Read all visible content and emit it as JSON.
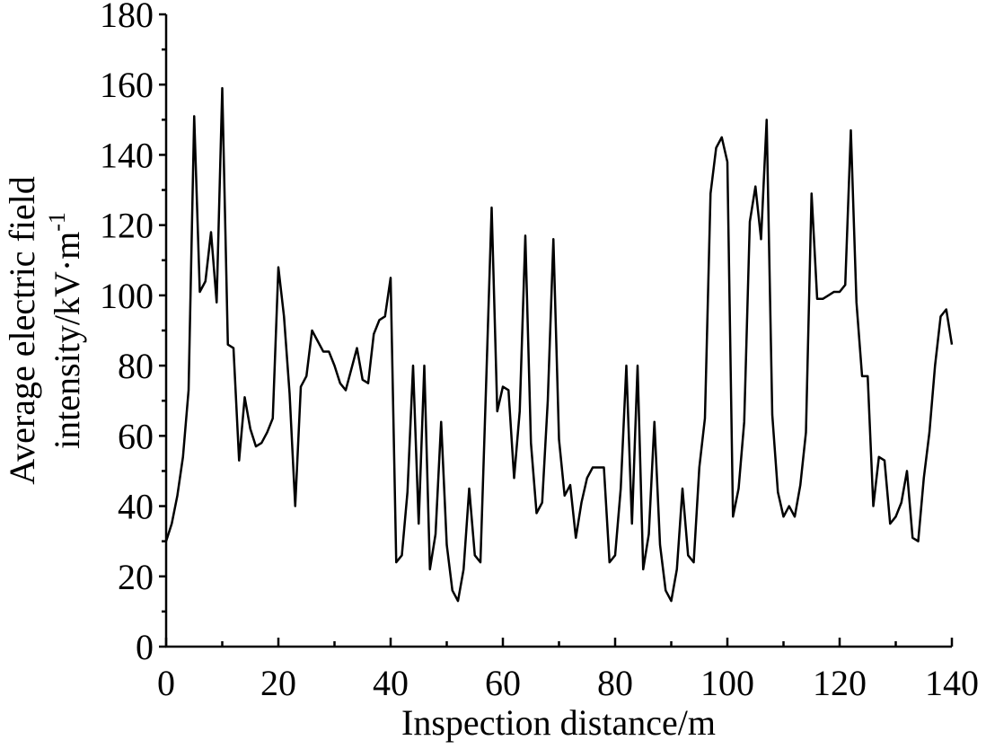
{
  "chart_data": {
    "type": "line",
    "xlabel": "Inspection distance/m",
    "ylabel": [
      "Average electric field",
      "intensity/kV·m"
    ],
    "ylabel_superscript": "-1",
    "color": "#000000",
    "x": [
      0,
      1,
      2,
      3,
      4,
      5,
      6,
      7,
      8,
      9,
      10,
      11,
      12,
      13,
      14,
      15,
      16,
      17,
      18,
      19,
      20,
      21,
      22,
      23,
      24,
      25,
      26,
      27,
      28,
      29,
      30,
      31,
      32,
      33,
      34,
      35,
      36,
      37,
      38,
      39,
      40,
      41,
      42,
      43,
      44,
      45,
      46,
      47,
      48,
      49,
      50,
      51,
      52,
      53,
      54,
      55,
      56,
      57,
      58,
      59,
      60,
      61,
      62,
      63,
      64,
      65,
      66,
      67,
      68,
      69,
      70,
      71,
      72,
      73,
      74,
      75,
      76,
      77,
      78,
      79,
      80,
      81,
      82,
      83,
      84,
      85,
      86,
      87,
      88,
      89,
      90,
      91,
      92,
      93,
      94,
      95,
      96,
      97,
      98,
      99,
      100,
      101,
      102,
      103,
      104,
      105,
      106,
      107,
      108,
      109,
      110,
      111,
      112,
      113,
      114,
      115,
      116,
      117,
      118,
      119,
      120,
      121,
      122,
      123,
      124,
      125,
      126,
      127,
      128,
      129,
      130,
      131,
      132,
      133,
      134,
      135,
      136,
      137,
      138,
      139,
      140
    ],
    "values": [
      30,
      35,
      43,
      54,
      73,
      151,
      101,
      104,
      118,
      98,
      159,
      86,
      85,
      53,
      71,
      62,
      57,
      58,
      61,
      65,
      108,
      94,
      72,
      40,
      74,
      77,
      90,
      87,
      84,
      84,
      80,
      75,
      73,
      79,
      85,
      76,
      75,
      89,
      93,
      94,
      105,
      24,
      26,
      44,
      80,
      35,
      80,
      22,
      32,
      64,
      29,
      16,
      13,
      22,
      45,
      26,
      24,
      74,
      125,
      67,
      74,
      73,
      48,
      67,
      117,
      58,
      38,
      41,
      70,
      116,
      59,
      43,
      46,
      31,
      41,
      48,
      51,
      51,
      51,
      24,
      26,
      45,
      80,
      35,
      80,
      22,
      32,
      64,
      29,
      16,
      13,
      22,
      45,
      26,
      24,
      51,
      65,
      129,
      142,
      145,
      138,
      37,
      45,
      64,
      121,
      131,
      116,
      150,
      66,
      44,
      37,
      40,
      37,
      46,
      61,
      129,
      99,
      99,
      100,
      101,
      101,
      103,
      147,
      98,
      77,
      77,
      40,
      54,
      53,
      35,
      37,
      41,
      50,
      31,
      30,
      48,
      61,
      80,
      94,
      96,
      86
    ],
    "xlim": [
      0,
      140
    ],
    "xticks": [
      0,
      20,
      40,
      60,
      80,
      100,
      120,
      140
    ],
    "minor_xticks": [
      10,
      30,
      50,
      70,
      90,
      110,
      130
    ],
    "ylim": [
      0,
      180
    ],
    "yticks": [
      0,
      20,
      40,
      60,
      80,
      100,
      120,
      140,
      160,
      180
    ],
    "minor_yticks": [
      10,
      30,
      50,
      70,
      90,
      110,
      130,
      150,
      170
    ]
  }
}
